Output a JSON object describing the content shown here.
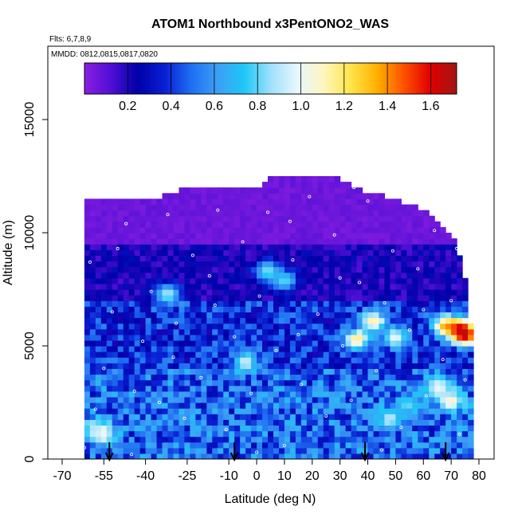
{
  "chart_data": {
    "type": "heatmap",
    "title": "ATOM1 Northbound x3PentONO2_WAS",
    "flights_label": "Flts: 6,7,8,9",
    "dates_label": "MMDD: 0812,0815,0817,0820",
    "xlabel": "Latitude (deg N)",
    "ylabel": "Altitude (m)",
    "xlim": [
      -70,
      80
    ],
    "ylim": [
      0,
      17500
    ],
    "x_ticks": [
      -70,
      -55,
      -40,
      -25,
      -10,
      0,
      10,
      20,
      30,
      40,
      50,
      60,
      70,
      80
    ],
    "x_tick_labels": [
      "-70",
      "-55",
      "-40",
      "-25",
      "-10",
      "0",
      "10",
      "20",
      "30",
      "40",
      "50",
      "60",
      "70",
      "80"
    ],
    "y_ticks": [
      0,
      5000,
      10000,
      15000
    ],
    "y_tick_labels": [
      "0",
      "5000",
      "10000",
      "15000"
    ],
    "colorbar": {
      "min": 0.0,
      "max": 1.72,
      "ticks": [
        0.2,
        0.4,
        0.6,
        0.8,
        1.0,
        1.2,
        1.4,
        1.6
      ],
      "tick_labels": [
        "0.2",
        "0.4",
        "0.6",
        "0.8",
        "1.0",
        "1.2",
        "1.4",
        "1.6"
      ],
      "colors": [
        "#8a1ee0",
        "#4f0fd6",
        "#0000a8",
        "#0a1ed2",
        "#1e6ef2",
        "#3c9ff5",
        "#1ec7f7",
        "#9fe0fb",
        "#e6f7fe",
        "#fff6c0",
        "#ffe54a",
        "#ffb000",
        "#ff5200",
        "#e00000",
        "#a31515"
      ]
    },
    "profile_top": [
      {
        "lat": -62,
        "alt": 11400
      },
      {
        "lat": -40,
        "alt": 11400
      },
      {
        "lat": -27,
        "alt": 11900
      },
      {
        "lat": 0,
        "alt": 11900
      },
      {
        "lat": 5,
        "alt": 12400
      },
      {
        "lat": 30,
        "alt": 12400
      },
      {
        "lat": 40,
        "alt": 11800
      },
      {
        "lat": 50,
        "alt": 11500
      },
      {
        "lat": 60,
        "alt": 11000
      },
      {
        "lat": 65,
        "alt": 10400
      },
      {
        "lat": 70,
        "alt": 10000
      },
      {
        "lat": 73,
        "alt": 9000
      },
      {
        "lat": 76,
        "alt": 7500
      },
      {
        "lat": 77,
        "alt": 6000
      },
      {
        "lat": 78,
        "alt": 5000
      }
    ],
    "hotspots": [
      {
        "lat": -56,
        "alt": 1200,
        "value": 1.2
      },
      {
        "lat": -58,
        "alt": 1300,
        "value": 0.9
      },
      {
        "lat": -32,
        "alt": 7300,
        "value": 0.9
      },
      {
        "lat": -4,
        "alt": 4300,
        "value": 0.95
      },
      {
        "lat": 4,
        "alt": 8300,
        "value": 0.85
      },
      {
        "lat": 10,
        "alt": 7900,
        "value": 0.8
      },
      {
        "lat": 42,
        "alt": 6100,
        "value": 1.15
      },
      {
        "lat": 36,
        "alt": 5300,
        "value": 1.2
      },
      {
        "lat": 50,
        "alt": 5400,
        "value": 1.0
      },
      {
        "lat": 68,
        "alt": 5900,
        "value": 1.3
      },
      {
        "lat": 73,
        "alt": 5800,
        "value": 1.55
      },
      {
        "lat": 75,
        "alt": 5500,
        "value": 1.7
      },
      {
        "lat": 70,
        "alt": 2600,
        "value": 1.1
      },
      {
        "lat": 65,
        "alt": 3200,
        "value": 1.0
      },
      {
        "lat": 48,
        "alt": 1800,
        "value": 0.9
      },
      {
        "lat": 55,
        "alt": 2400,
        "value": 0.8
      }
    ],
    "sample_points": [
      [
        -62,
        500
      ],
      [
        -58,
        2200
      ],
      [
        -55,
        4000
      ],
      [
        -52,
        6500
      ],
      [
        -50,
        9300
      ],
      [
        -47,
        10400
      ],
      [
        -44,
        3000
      ],
      [
        -41,
        5200
      ],
      [
        -38,
        7400
      ],
      [
        -35,
        2500
      ],
      [
        -32,
        10800
      ],
      [
        -29,
        6000
      ],
      [
        -26,
        1800
      ],
      [
        -23,
        9000
      ],
      [
        -20,
        3600
      ],
      [
        -17,
        8100
      ],
      [
        -14,
        11000
      ],
      [
        -11,
        1300
      ],
      [
        -8,
        5400
      ],
      [
        -5,
        9600
      ],
      [
        -2,
        2900
      ],
      [
        1,
        7200
      ],
      [
        4,
        10900
      ],
      [
        7,
        4800
      ],
      [
        10,
        600
      ],
      [
        13,
        8800
      ],
      [
        16,
        3300
      ],
      [
        19,
        11600
      ],
      [
        22,
        6400
      ],
      [
        25,
        1900
      ],
      [
        28,
        9900
      ],
      [
        31,
        5000
      ],
      [
        34,
        2600
      ],
      [
        37,
        7800
      ],
      [
        40,
        11400
      ],
      [
        43,
        3900
      ],
      [
        46,
        6900
      ],
      [
        49,
        9200
      ],
      [
        52,
        1400
      ],
      [
        55,
        5700
      ],
      [
        58,
        8400
      ],
      [
        61,
        2800
      ],
      [
        64,
        10100
      ],
      [
        67,
        4400
      ],
      [
        70,
        7000
      ],
      [
        73,
        1100
      ],
      [
        75,
        3500
      ],
      [
        77,
        6200
      ],
      [
        -60,
        8700
      ],
      [
        -45,
        200
      ],
      [
        -30,
        4500
      ],
      [
        -15,
        6800
      ],
      [
        0,
        300
      ],
      [
        15,
        5500
      ],
      [
        30,
        8000
      ],
      [
        45,
        400
      ],
      [
        60,
        6600
      ],
      [
        72,
        9300
      ],
      [
        35,
        12000
      ],
      [
        12,
        10500
      ]
    ],
    "arrows": [
      {
        "lat": -53
      },
      {
        "lat": -8
      },
      {
        "lat": 39
      },
      {
        "lat": 68
      }
    ]
  }
}
